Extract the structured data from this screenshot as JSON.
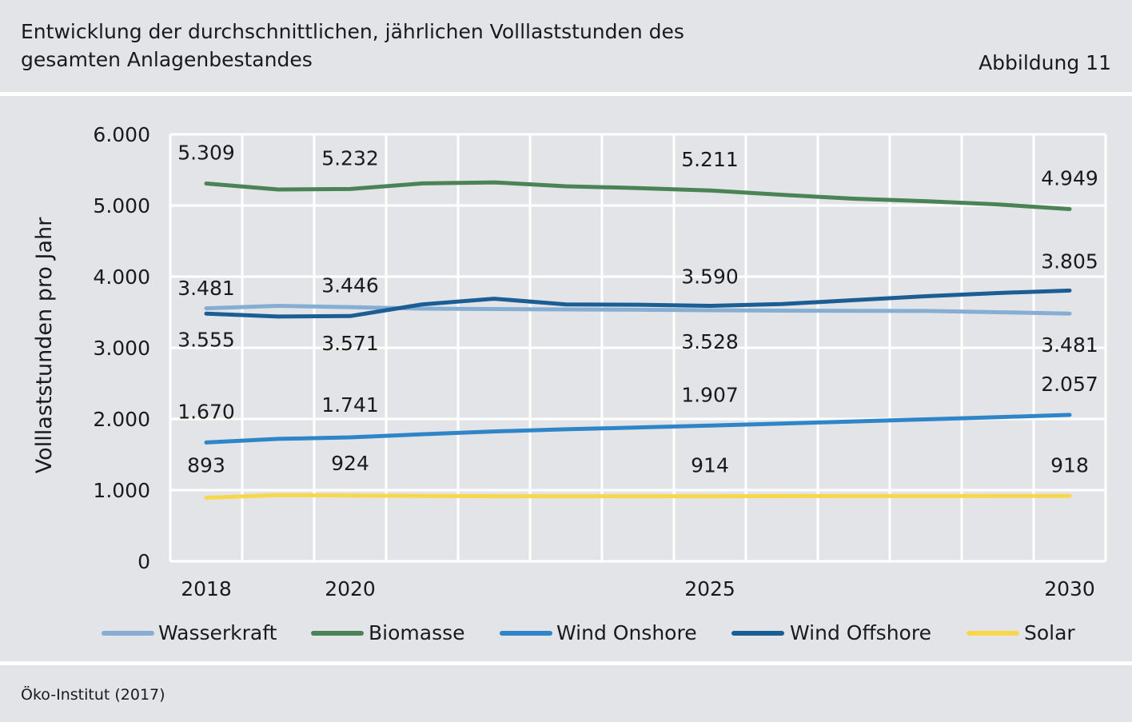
{
  "header": {
    "title": "Entwicklung der durchschnittlichen, jährlichen Volllaststunden des\ngesamten Anlagenbestandes",
    "figure_label": "Abbildung 11"
  },
  "footer": {
    "source": "Öko-Institut (2017)"
  },
  "colors": {
    "background": "#e3e4e8",
    "grid": "#ffffff",
    "wasserkraft": "#86aed3",
    "biomasse": "#4a8355",
    "wind_onshore": "#2e86c8",
    "wind_offshore": "#1a5e94",
    "solar": "#f8d74a"
  },
  "chart_data": {
    "type": "line",
    "title": "Entwicklung der durchschnittlichen, jährlichen Volllaststunden des gesamten Anlagenbestandes",
    "ylabel": "Volllaststunden pro Jahr",
    "xlabel": "",
    "x": [
      2018,
      2019,
      2020,
      2021,
      2022,
      2023,
      2024,
      2025,
      2026,
      2027,
      2028,
      2029,
      2030
    ],
    "x_tick_labels": [
      {
        "x": 2018,
        "label": "2018"
      },
      {
        "x": 2020,
        "label": "2020"
      },
      {
        "x": 2025,
        "label": "2025"
      },
      {
        "x": 2030,
        "label": "2030"
      }
    ],
    "ylim": [
      0,
      6000
    ],
    "y_ticks": [
      0,
      1000,
      2000,
      3000,
      4000,
      5000,
      6000
    ],
    "y_tick_labels": [
      "0",
      "1.000",
      "2.000",
      "3.000",
      "4.000",
      "5.000",
      "6.000"
    ],
    "grid": true,
    "legend_position": "bottom",
    "series": [
      {
        "name": "Wasserkraft",
        "color": "#86aed3",
        "values": [
          3555,
          3590,
          3571,
          3550,
          3545,
          3540,
          3535,
          3528,
          3522,
          3520,
          3518,
          3500,
          3481
        ],
        "data_labels": [
          {
            "x": 2018,
            "text": "3.555"
          },
          {
            "x": 2020,
            "text": "3.571"
          },
          {
            "x": 2025,
            "text": "3.528"
          },
          {
            "x": 2030,
            "text": "3.481"
          }
        ]
      },
      {
        "name": "Biomasse",
        "color": "#4a8355",
        "values": [
          5309,
          5225,
          5232,
          5310,
          5325,
          5270,
          5245,
          5211,
          5150,
          5095,
          5060,
          5015,
          4949
        ],
        "data_labels": [
          {
            "x": 2018,
            "text": "5.309"
          },
          {
            "x": 2020,
            "text": "5.232"
          },
          {
            "x": 2025,
            "text": "5.211"
          },
          {
            "x": 2030,
            "text": "4.949"
          }
        ]
      },
      {
        "name": "Wind Onshore",
        "color": "#2e86c8",
        "values": [
          1670,
          1720,
          1741,
          1785,
          1825,
          1855,
          1880,
          1907,
          1935,
          1965,
          1995,
          2025,
          2057
        ],
        "data_labels": [
          {
            "x": 2018,
            "text": "1.670"
          },
          {
            "x": 2020,
            "text": "1.741"
          },
          {
            "x": 2025,
            "text": "1.907"
          },
          {
            "x": 2030,
            "text": "2.057"
          }
        ]
      },
      {
        "name": "Wind Offshore",
        "color": "#1a5e94",
        "values": [
          3481,
          3440,
          3446,
          3610,
          3690,
          3610,
          3605,
          3590,
          3615,
          3670,
          3725,
          3770,
          3805
        ],
        "data_labels": [
          {
            "x": 2018,
            "text": "3.481"
          },
          {
            "x": 2020,
            "text": "3.446"
          },
          {
            "x": 2025,
            "text": "3.590"
          },
          {
            "x": 2030,
            "text": "3.805"
          }
        ]
      },
      {
        "name": "Solar",
        "color": "#f8d74a",
        "values": [
          893,
          930,
          924,
          918,
          915,
          914,
          914,
          914,
          916,
          917,
          917,
          918,
          918
        ],
        "data_labels": [
          {
            "x": 2018,
            "text": "893"
          },
          {
            "x": 2020,
            "text": "924"
          },
          {
            "x": 2025,
            "text": "914"
          },
          {
            "x": 2030,
            "text": "918"
          }
        ]
      }
    ]
  }
}
